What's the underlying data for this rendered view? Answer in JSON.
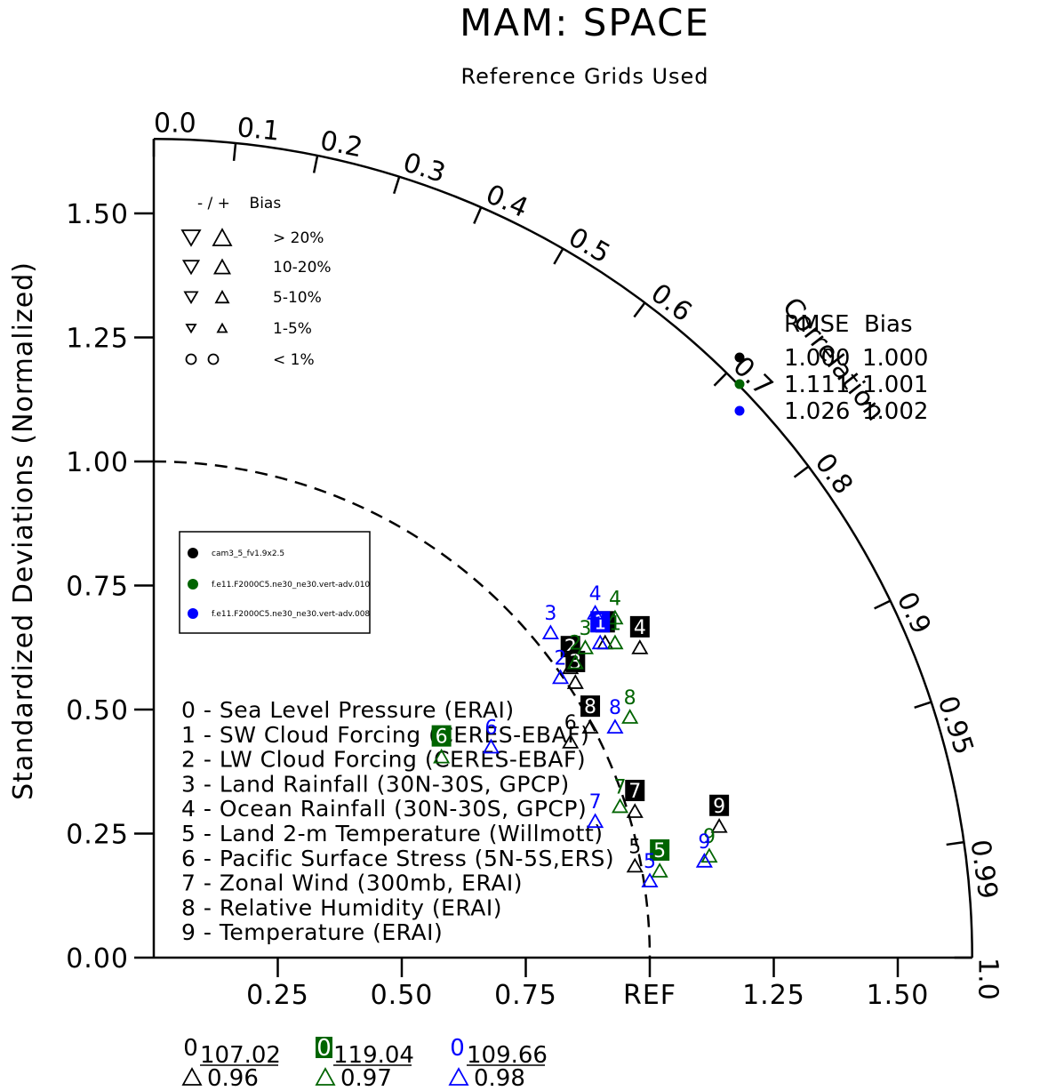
{
  "chart_data": {
    "type": "scatter",
    "subtype": "taylor-diagram",
    "title": "MAM: SPACE",
    "subtitle": "Reference Grids Used",
    "ylabel": "Standardized Deviations (Normalized)",
    "correlation_label": "Correlation",
    "ref_label": "REF",
    "stddev_range": [
      0,
      1.65
    ],
    "x_tick_labels": [
      "0.25",
      "0.50",
      "0.75",
      "REF",
      "1.25",
      "1.50"
    ],
    "y_tick_labels": [
      "0.00",
      "0.25",
      "0.50",
      "0.75",
      "1.00",
      "1.25",
      "1.50"
    ],
    "correlation_ticks": [
      "0.0",
      "0.1",
      "0.2",
      "0.3",
      "0.4",
      "0.5",
      "0.6",
      "0.7",
      "0.8",
      "0.9",
      "0.95",
      "0.99",
      "1.0"
    ],
    "bias_legend": {
      "header": "- / +    Bias",
      "rows": [
        "> 20%",
        "10-20%",
        "5-10%",
        "1-5%",
        "< 1%"
      ]
    },
    "rmse_bias_table": {
      "header": "RMSE  Bias",
      "rows": [
        {
          "rmse": "1.000",
          "bias": "1.000",
          "color": "#000000"
        },
        {
          "rmse": "1.111",
          "bias": "1.001",
          "color": "#006400"
        },
        {
          "rmse": "1.026",
          "bias": "1.002",
          "color": "#0000ff"
        }
      ]
    },
    "series": [
      {
        "name": "cam3_5_fv1.9x2.5",
        "color": "#000000"
      },
      {
        "name": "f.e11.F2000C5.ne30_ne30.vert-adv.010",
        "color": "#006400"
      },
      {
        "name": "f.e11.F2000C5.ne30_ne30.vert-adv.008",
        "color": "#0000ff"
      }
    ],
    "variables": [
      "0 - Sea Level Pressure (ERAI)",
      "1 - SW Cloud Forcing (CERES-EBAF)",
      "2 - LW Cloud Forcing (CERES-EBAF)",
      "3 - Land Rainfall (30N-30S, GPCP)",
      "4 - Ocean Rainfall (30N-30S, GPCP)",
      "5 - Land 2-m Temperature (Willmott)",
      "6 - Pacific Surface Stress (5N-5S,ERS)",
      "7 - Zonal Wind (300mb, ERAI)",
      "8 - Relative Humidity (ERAI)",
      "9 - Temperature (ERAI)"
    ],
    "points": [
      {
        "series": 0,
        "id": "1",
        "x": 0.91,
        "y": 0.65,
        "boxed": true
      },
      {
        "series": 0,
        "id": "2",
        "x": 0.84,
        "y": 0.6,
        "boxed": true
      },
      {
        "series": 0,
        "id": "3",
        "x": 0.85,
        "y": 0.57,
        "boxed": true
      },
      {
        "series": 0,
        "id": "4",
        "x": 0.98,
        "y": 0.64,
        "boxed": true
      },
      {
        "series": 0,
        "id": "5",
        "x": 0.97,
        "y": 0.2,
        "boxed": false
      },
      {
        "series": 0,
        "id": "6",
        "x": 0.84,
        "y": 0.45,
        "boxed": false
      },
      {
        "series": 0,
        "id": "7",
        "x": 0.97,
        "y": 0.31,
        "boxed": true
      },
      {
        "series": 0,
        "id": "8",
        "x": 0.88,
        "y": 0.48,
        "boxed": true
      },
      {
        "series": 0,
        "id": "9",
        "x": 1.14,
        "y": 0.28,
        "boxed": true
      },
      {
        "series": 1,
        "id": "1",
        "x": 0.93,
        "y": 0.65,
        "boxed": false
      },
      {
        "series": 1,
        "id": "2",
        "x": 0.85,
        "y": 0.61,
        "boxed": false
      },
      {
        "series": 1,
        "id": "3",
        "x": 0.87,
        "y": 0.64,
        "boxed": false
      },
      {
        "series": 1,
        "id": "4",
        "x": 0.93,
        "y": 0.7,
        "boxed": false
      },
      {
        "series": 1,
        "id": "5",
        "x": 1.02,
        "y": 0.19,
        "boxed": true
      },
      {
        "series": 1,
        "id": "6",
        "x": 0.58,
        "y": 0.42,
        "boxed": true
      },
      {
        "series": 1,
        "id": "7",
        "x": 0.94,
        "y": 0.32,
        "boxed": false
      },
      {
        "series": 1,
        "id": "8",
        "x": 0.96,
        "y": 0.5,
        "boxed": false
      },
      {
        "series": 1,
        "id": "9",
        "x": 1.12,
        "y": 0.22,
        "boxed": false
      },
      {
        "series": 2,
        "id": "1",
        "x": 0.9,
        "y": 0.65,
        "boxed": true
      },
      {
        "series": 2,
        "id": "2",
        "x": 0.82,
        "y": 0.58,
        "boxed": false
      },
      {
        "series": 2,
        "id": "3",
        "x": 0.8,
        "y": 0.67,
        "boxed": false
      },
      {
        "series": 2,
        "id": "4",
        "x": 0.89,
        "y": 0.71,
        "boxed": false
      },
      {
        "series": 2,
        "id": "5",
        "x": 1.0,
        "y": 0.17,
        "boxed": false
      },
      {
        "series": 2,
        "id": "6",
        "x": 0.68,
        "y": 0.44,
        "boxed": false
      },
      {
        "series": 2,
        "id": "7",
        "x": 0.89,
        "y": 0.29,
        "boxed": false
      },
      {
        "series": 2,
        "id": "8",
        "x": 0.93,
        "y": 0.48,
        "boxed": false
      },
      {
        "series": 2,
        "id": "9",
        "x": 1.11,
        "y": 0.21,
        "boxed": false
      }
    ],
    "summary": [
      {
        "value": "107.02",
        "corr": "0.96",
        "color": "#000000",
        "boxed": false
      },
      {
        "value": "119.04",
        "corr": "0.97",
        "color": "#006400",
        "boxed": true
      },
      {
        "value": "109.66",
        "corr": "0.98",
        "color": "#0000ff",
        "boxed": false
      }
    ],
    "summary_label": "0",
    "grid": false
  }
}
